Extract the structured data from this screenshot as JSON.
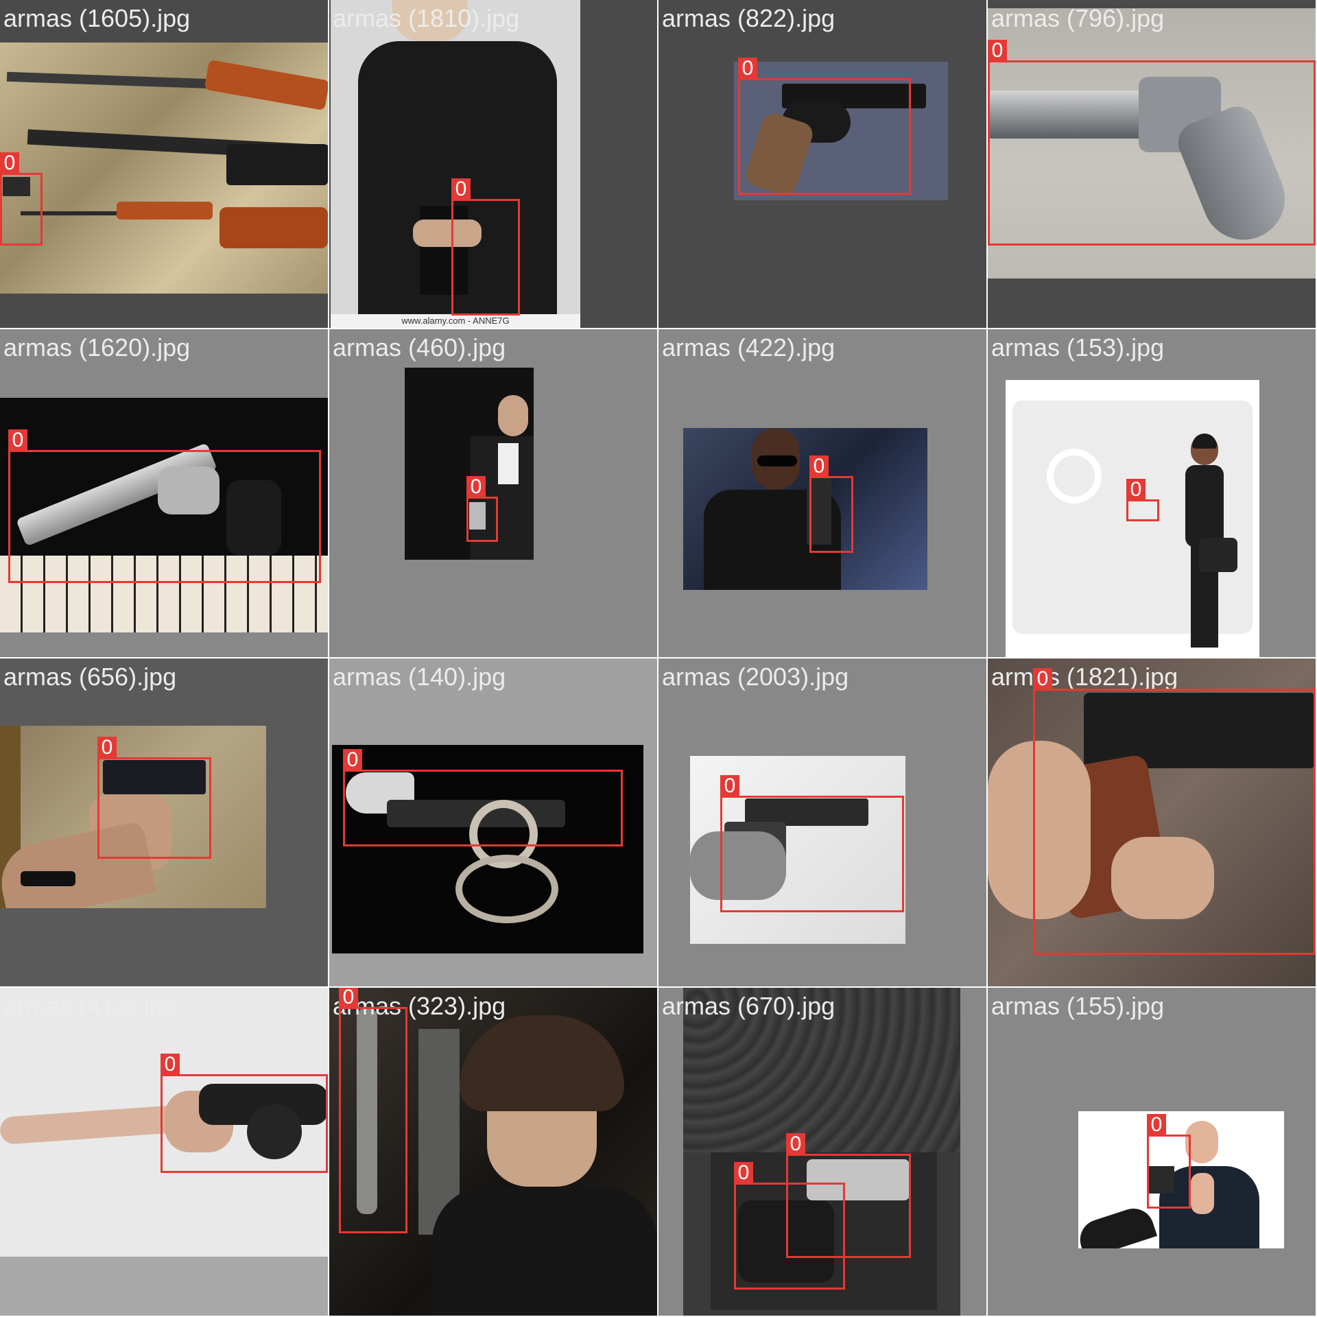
{
  "grid": {
    "tiles": [
      {
        "filename": "armas (1605).jpg",
        "class_labels": [
          "0"
        ]
      },
      {
        "filename": "armas (1810).jpg",
        "class_labels": [
          "0"
        ],
        "watermark": "www.alamy.com - ANNE7G"
      },
      {
        "filename": "armas (822).jpg",
        "class_labels": [
          "0"
        ]
      },
      {
        "filename": "armas (796).jpg",
        "class_labels": [
          "0"
        ]
      },
      {
        "filename": "armas (1620).jpg",
        "class_labels": [
          "0"
        ]
      },
      {
        "filename": "armas (460).jpg",
        "class_labels": [
          "0"
        ]
      },
      {
        "filename": "armas (422).jpg",
        "class_labels": [
          "0"
        ]
      },
      {
        "filename": "armas (153).jpg",
        "class_labels": [
          "0"
        ]
      },
      {
        "filename": "armas (656).jpg",
        "class_labels": [
          "0"
        ]
      },
      {
        "filename": "armas (140).jpg",
        "class_labels": [
          "0"
        ]
      },
      {
        "filename": "armas (2003).jpg",
        "class_labels": [
          "0"
        ]
      },
      {
        "filename": "armas (1821).jpg",
        "class_labels": [
          "0"
        ]
      },
      {
        "filename": "armas (412).jpg",
        "class_labels": [
          "0"
        ]
      },
      {
        "filename": "armas (323).jpg",
        "class_labels": [
          "0"
        ]
      },
      {
        "filename": "armas (670).jpg",
        "class_labels": [
          "0",
          "0"
        ]
      },
      {
        "filename": "armas (155).jpg",
        "class_labels": [
          "0"
        ]
      }
    ]
  },
  "colors": {
    "bbox": "#e53935",
    "label_text": "#ececec"
  }
}
